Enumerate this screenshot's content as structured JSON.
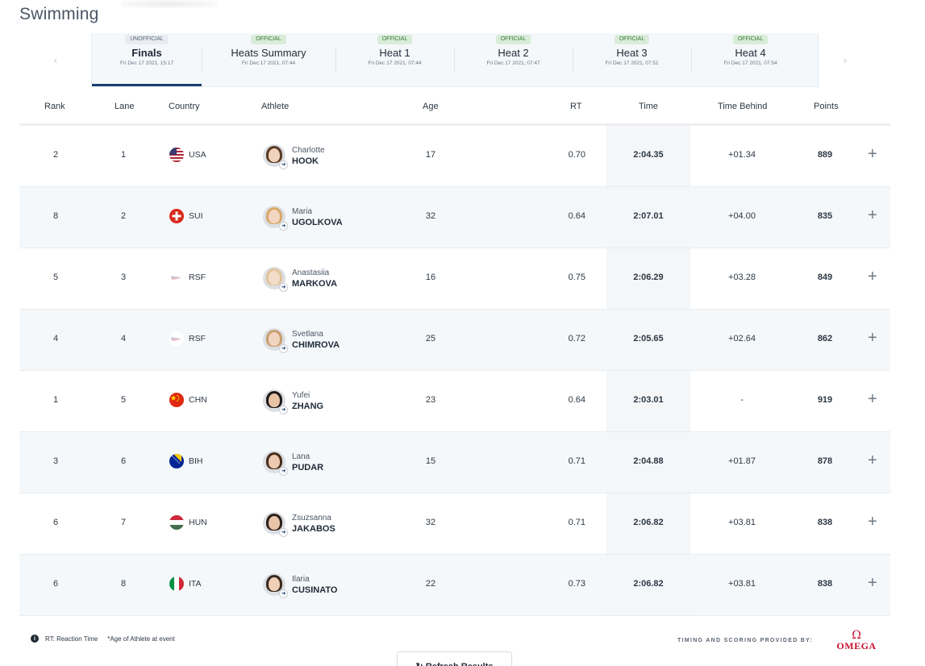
{
  "page": {
    "title": "Swimming"
  },
  "tabs": [
    {
      "badge": "UNOFFICIAL",
      "label": "Finals",
      "date": "Fri Dec 17 2021, 15:17",
      "active": true
    },
    {
      "badge": "OFFICIAL",
      "label": "Heats Summary",
      "date": "Fri Dec 17 2021, 07:44"
    },
    {
      "badge": "OFFICIAL",
      "label": "Heat 1",
      "date": "Fri Dec 17 2021, 07:44"
    },
    {
      "badge": "OFFICIAL",
      "label": "Heat 2",
      "date": "Fri Dec 17 2021, 07:47"
    },
    {
      "badge": "OFFICIAL",
      "label": "Heat 3",
      "date": "Fri Dec 17 2021, 07:51"
    },
    {
      "badge": "OFFICIAL",
      "label": "Heat 4",
      "date": "Fri Dec 17 2021, 07:54"
    }
  ],
  "tab_nav": {
    "prev_icon": "‹",
    "next_icon": "›"
  },
  "table": {
    "headers": {
      "rank": "Rank",
      "lane": "Lane",
      "country": "Country",
      "athlete": "Athlete",
      "age": "Age",
      "rt": "RT",
      "time": "Time",
      "time_behind": "Time Behind",
      "points": "Points"
    },
    "expand_icon": "+",
    "rows": [
      {
        "rank": "2",
        "lane": "1",
        "country": "USA",
        "first": "Charlotte",
        "last": "HOOK",
        "age": "17",
        "rt": "0.70",
        "time": "2:04.35",
        "behind": "+01.34",
        "points": "889"
      },
      {
        "rank": "8",
        "lane": "2",
        "country": "SUI",
        "first": "Maria",
        "last": "UGOLKOVA",
        "age": "32",
        "rt": "0.64",
        "time": "2:07.01",
        "behind": "+04.00",
        "points": "835"
      },
      {
        "rank": "5",
        "lane": "3",
        "country": "RSF",
        "first": "Anastasiia",
        "last": "MARKOVA",
        "age": "16",
        "rt": "0.75",
        "time": "2:06.29",
        "behind": "+03.28",
        "points": "849"
      },
      {
        "rank": "4",
        "lane": "4",
        "country": "RSF",
        "first": "Svetlana",
        "last": "CHIMROVA",
        "age": "25",
        "rt": "0.72",
        "time": "2:05.65",
        "behind": "+02.64",
        "points": "862"
      },
      {
        "rank": "1",
        "lane": "5",
        "country": "CHN",
        "first": "Yufei",
        "last": "ZHANG",
        "age": "23",
        "rt": "0.64",
        "time": "2:03.01",
        "behind": "-",
        "points": "919"
      },
      {
        "rank": "3",
        "lane": "6",
        "country": "BIH",
        "first": "Lana",
        "last": "PUDAR",
        "age": "15",
        "rt": "0.71",
        "time": "2:04.88",
        "behind": "+01.87",
        "points": "878"
      },
      {
        "rank": "6",
        "lane": "7",
        "country": "HUN",
        "first": "Zsuzsanna",
        "last": "JAKABOS",
        "age": "32",
        "rt": "0.71",
        "time": "2:06.82",
        "behind": "+03.81",
        "points": "838"
      },
      {
        "rank": "6",
        "lane": "8",
        "country": "ITA",
        "first": "Ilaria",
        "last": "CUSINATO",
        "age": "22",
        "rt": "0.73",
        "time": "2:06.82",
        "behind": "+03.81",
        "points": "838"
      }
    ]
  },
  "footer": {
    "info_icon": "i",
    "rt_note": "RT: Reaction Time",
    "age_note": "*Age of Athlete at event",
    "timing": "TIMING AND SCORING PROVIDED BY:",
    "brand_symbol": "Ω",
    "brand": "OMEGA",
    "refresh_label": "↻ Refresh Results"
  }
}
